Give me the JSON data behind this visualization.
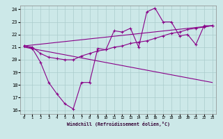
{
  "background_color": "#cce8e8",
  "grid_color": "#aacccc",
  "line_color": "#880088",
  "xlabel": "Windchill (Refroidissement éolien,°C)",
  "xlim": [
    -0.5,
    23.5
  ],
  "ylim": [
    15.7,
    24.3
  ],
  "yticks": [
    16,
    17,
    18,
    19,
    20,
    21,
    22,
    23,
    24
  ],
  "xticks": [
    0,
    1,
    2,
    3,
    4,
    5,
    6,
    7,
    8,
    9,
    10,
    11,
    12,
    13,
    14,
    15,
    16,
    17,
    18,
    19,
    20,
    21,
    22,
    23
  ],
  "line1_x": [
    0,
    1,
    2,
    3,
    4,
    5,
    6,
    7,
    8,
    9,
    10,
    11,
    12,
    13,
    14,
    15,
    16,
    17,
    18,
    19,
    20,
    21,
    22,
    23
  ],
  "line1_y": [
    21.1,
    20.9,
    19.8,
    18.2,
    17.3,
    16.5,
    16.1,
    18.2,
    18.2,
    20.9,
    20.8,
    22.3,
    22.2,
    22.5,
    21.0,
    23.8,
    24.1,
    23.0,
    23.0,
    21.9,
    22.0,
    21.2,
    22.7,
    22.7
  ],
  "line2_x": [
    0,
    1,
    2,
    3,
    4,
    5,
    6,
    7,
    8,
    9,
    10,
    11,
    12,
    13,
    14,
    15,
    16,
    17,
    18,
    19,
    20,
    21,
    22,
    23
  ],
  "line2_y": [
    21.1,
    21.0,
    20.5,
    20.2,
    20.1,
    20.0,
    20.0,
    20.3,
    20.5,
    20.7,
    20.8,
    21.0,
    21.1,
    21.3,
    21.4,
    21.5,
    21.7,
    21.9,
    22.1,
    22.2,
    22.4,
    22.5,
    22.6,
    22.7
  ],
  "line3_x": [
    0,
    23
  ],
  "line3_y": [
    21.1,
    22.7
  ],
  "line4_x": [
    0,
    23
  ],
  "line4_y": [
    21.0,
    18.2
  ]
}
